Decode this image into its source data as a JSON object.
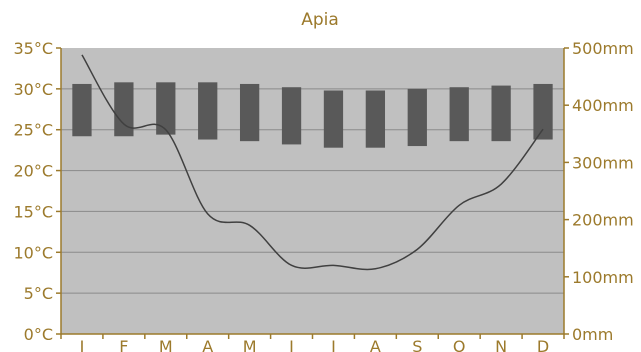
{
  "chart_data": {
    "type": "climate",
    "title": "Apia",
    "categories": [
      "J",
      "F",
      "M",
      "A",
      "M",
      "J",
      "J",
      "A",
      "S",
      "O",
      "N",
      "D"
    ],
    "temperature": {
      "unit": "°C",
      "ylim": [
        0,
        35
      ],
      "ticks": [
        "0°C",
        "5°C",
        "10°C",
        "15°C",
        "20°C",
        "25°C",
        "30°C",
        "35°C"
      ],
      "high": [
        30.6,
        30.8,
        30.8,
        30.8,
        30.6,
        30.2,
        29.8,
        29.8,
        30.0,
        30.2,
        30.4,
        30.6
      ],
      "low": [
        24.2,
        24.2,
        24.4,
        23.8,
        23.6,
        23.2,
        22.8,
        22.8,
        23.0,
        23.6,
        23.6,
        23.8
      ]
    },
    "precipitation": {
      "unit": "mm",
      "ylim": [
        0,
        500
      ],
      "ticks": [
        "0mm",
        "100mm",
        "200mm",
        "300mm",
        "400mm",
        "500mm"
      ],
      "values": [
        488,
        367,
        357,
        210,
        190,
        120,
        120,
        114,
        148,
        225,
        262,
        358
      ]
    },
    "grid": true,
    "colors": {
      "plot_background": "#c0c0c0",
      "bar": "#595959",
      "line": "#404040",
      "text": "#9c7a2c",
      "axis": "#9c7a2c",
      "grid": "#8a8a8a"
    }
  }
}
